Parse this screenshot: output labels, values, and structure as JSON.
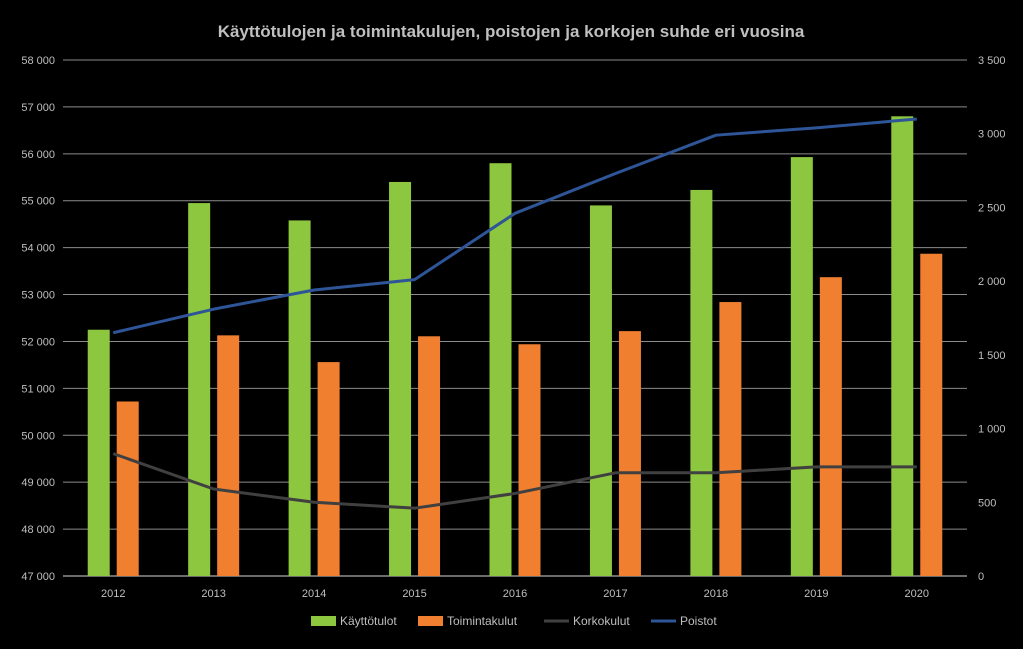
{
  "chart_data": {
    "type": "bar",
    "title": "Käyttötulojen ja toimintakulujen, poistojen ja korkojen suhde eri vuosina",
    "categories": [
      "2012",
      "2013",
      "2014",
      "2015",
      "2016",
      "2017",
      "2018",
      "2019",
      "2020"
    ],
    "left_axis": {
      "ylim": [
        47000,
        58000
      ],
      "ticks": [
        "47 000",
        "48 000",
        "49 000",
        "50 000",
        "51 000",
        "52 000",
        "53 000",
        "54 000",
        "55 000",
        "56 000",
        "57 000",
        "58 000"
      ]
    },
    "right_axis": {
      "ylim": [
        0,
        3500
      ],
      "ticks": [
        "0",
        "500",
        "1 000",
        "1 500",
        "2 000",
        "2 500",
        "3 000",
        "3 500"
      ]
    },
    "grid": true,
    "legend_position": "bottom",
    "series": [
      {
        "name": "Käyttötulot",
        "type": "bar",
        "axis": "left",
        "color": "#8dc63f",
        "values": [
          52250,
          54950,
          54580,
          55400,
          55800,
          54900,
          55230,
          55930,
          56800
        ]
      },
      {
        "name": "Toimintakulut",
        "type": "bar",
        "axis": "left",
        "color": "#f08030",
        "values": [
          50720,
          52130,
          51560,
          52110,
          51940,
          52220,
          52840,
          53370,
          53870
        ]
      },
      {
        "name": "Korkokulut",
        "type": "line",
        "axis": "right",
        "color": "#404040",
        "values": [
          830,
          590,
          500,
          460,
          560,
          700,
          700,
          740,
          740
        ]
      },
      {
        "name": "Poistot",
        "type": "line",
        "axis": "right",
        "color": "#2e5597",
        "values": [
          1650,
          1810,
          1940,
          2010,
          2460,
          2730,
          2990,
          3040,
          3100
        ]
      }
    ]
  }
}
